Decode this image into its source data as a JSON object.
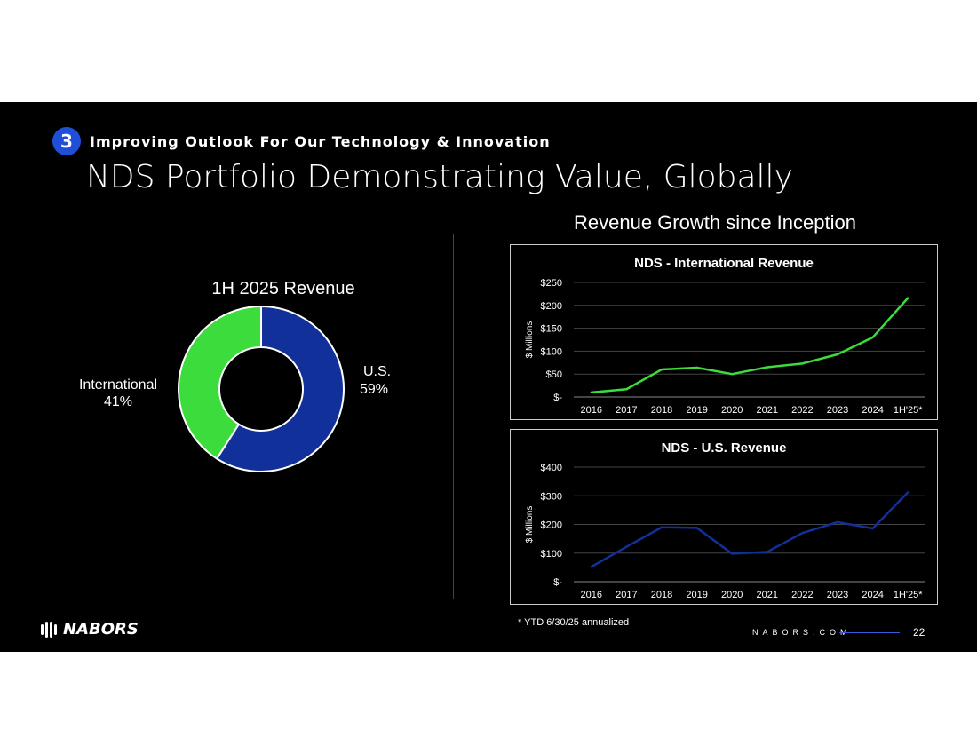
{
  "header": {
    "badge_number": "3",
    "subtitle": "Improving Outlook For Our Technology & Innovation",
    "title": "NDS Portfolio Demonstrating Value, Globally"
  },
  "right_heading": "Revenue Growth since Inception",
  "chart_data": [
    {
      "type": "pie",
      "donut": true,
      "title": "1H 2025 Revenue",
      "slices": [
        {
          "label": "U.S.",
          "value": 59,
          "value_label": "59%",
          "color": "#12309a"
        },
        {
          "label": "International",
          "value": 41,
          "value_label": "41%",
          "color": "#3ddc3d"
        }
      ]
    },
    {
      "type": "line",
      "title": "NDS - International Revenue",
      "ylabel": "$ Millions",
      "categories": [
        "2016",
        "2017",
        "2018",
        "2019",
        "2020",
        "2021",
        "2022",
        "2023",
        "2024",
        "1H'25*"
      ],
      "series": [
        {
          "values": [
            10,
            17,
            60,
            64,
            50,
            65,
            73,
            93,
            130,
            216
          ],
          "color": "#3ddc3d"
        }
      ],
      "ylim": [
        0,
        250
      ],
      "yticks": [
        0,
        50,
        100,
        150,
        200,
        250
      ],
      "ytick_labels": [
        "$-",
        "$50",
        "$100",
        "$150",
        "$200",
        "$250"
      ],
      "grid": true
    },
    {
      "type": "line",
      "title": "NDS - U.S. Revenue",
      "ylabel": "$ Millions",
      "categories": [
        "2016",
        "2017",
        "2018",
        "2019",
        "2020",
        "2021",
        "2022",
        "2023",
        "2024",
        "1H'25*"
      ],
      "series": [
        {
          "values": [
            52,
            122,
            190,
            188,
            98,
            104,
            170,
            208,
            186,
            312
          ],
          "color": "#12309a"
        }
      ],
      "ylim": [
        0,
        400
      ],
      "yticks": [
        0,
        100,
        200,
        300,
        400
      ],
      "ytick_labels": [
        "$-",
        "$100",
        "$200",
        "$300",
        "$400"
      ],
      "grid": true
    }
  ],
  "footnote": "* YTD 6/30/25 annualized",
  "footer": {
    "logo_text": "NABORS",
    "website": "NABORS.COM",
    "page_number": "22"
  }
}
